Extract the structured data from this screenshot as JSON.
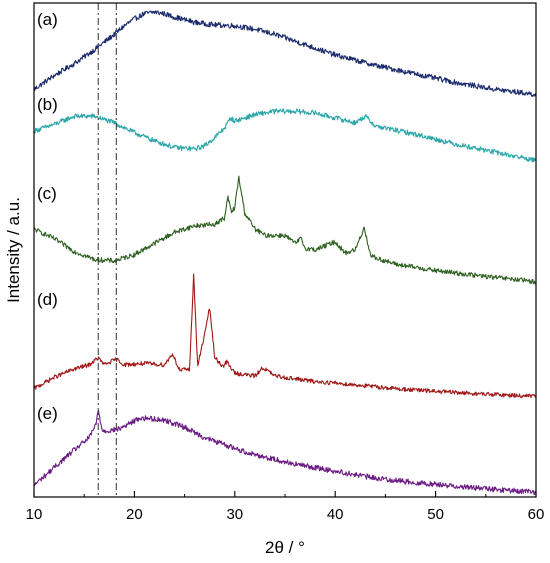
{
  "chart_data": {
    "type": "line",
    "title": "",
    "xlabel": "2θ / °",
    "ylabel": "Intensity / a.u.",
    "xlim": [
      10,
      60
    ],
    "xticks": [
      10,
      20,
      30,
      40,
      50,
      60
    ],
    "yticks_shown": false,
    "grid": false,
    "legend": "none",
    "stacked_offset": true,
    "reference_lines_x": [
      16.4,
      18.2
    ],
    "series": [
      {
        "name": "(a)",
        "color": "#1a2a6c",
        "x": [
          10,
          12,
          14,
          16,
          18,
          19,
          20,
          21,
          22,
          23,
          24,
          26,
          28,
          30,
          32,
          34,
          36,
          38,
          40,
          44,
          48,
          52,
          56,
          60
        ],
        "y": [
          0.1,
          0.26,
          0.4,
          0.56,
          0.74,
          0.84,
          0.92,
          0.98,
          1.0,
          0.98,
          0.94,
          0.88,
          0.85,
          0.84,
          0.8,
          0.74,
          0.66,
          0.58,
          0.5,
          0.38,
          0.28,
          0.18,
          0.1,
          0.04
        ]
      },
      {
        "name": "(b)",
        "color": "#2ba6a8",
        "x": [
          10,
          12,
          14,
          16,
          18,
          20,
          22,
          24,
          26,
          27,
          28,
          29,
          29.6,
          30,
          31,
          32,
          34,
          36,
          38,
          40,
          42,
          43,
          44,
          48,
          52,
          56,
          60
        ],
        "y": [
          0.5,
          0.58,
          0.68,
          0.68,
          0.6,
          0.48,
          0.38,
          0.3,
          0.28,
          0.32,
          0.42,
          0.54,
          0.66,
          0.62,
          0.66,
          0.7,
          0.74,
          0.74,
          0.72,
          0.66,
          0.6,
          0.68,
          0.56,
          0.46,
          0.34,
          0.24,
          0.14
        ]
      },
      {
        "name": "(c)",
        "color": "#2e6020",
        "x": [
          10,
          12,
          14,
          16,
          18,
          20,
          22,
          24,
          26,
          28,
          29,
          29.3,
          29.7,
          30,
          30.4,
          31,
          32,
          33,
          35,
          36,
          36.6,
          37,
          38,
          40,
          41,
          42,
          42.9,
          43.5,
          44,
          46,
          48,
          50,
          54,
          57,
          60
        ],
        "y": [
          0.7,
          0.58,
          0.42,
          0.32,
          0.3,
          0.38,
          0.52,
          0.66,
          0.74,
          0.76,
          0.84,
          1.1,
          0.9,
          0.98,
          1.34,
          0.9,
          0.7,
          0.62,
          0.62,
          0.52,
          0.58,
          0.46,
          0.44,
          0.54,
          0.4,
          0.44,
          0.72,
          0.38,
          0.34,
          0.26,
          0.22,
          0.18,
          0.12,
          0.08,
          0.04
        ]
      },
      {
        "name": "(d)",
        "color": "#a01818",
        "x": [
          10,
          12,
          14,
          15.5,
          16.4,
          17,
          18.2,
          19,
          21,
          23,
          23.8,
          24.5,
          25.5,
          25.9,
          26.3,
          27,
          27.5,
          28,
          28.8,
          29.2,
          30,
          32,
          32.8,
          34,
          36,
          38,
          40,
          43,
          46,
          50,
          55,
          60
        ],
        "y": [
          0.12,
          0.28,
          0.4,
          0.46,
          0.56,
          0.46,
          0.54,
          0.46,
          0.48,
          0.46,
          0.62,
          0.38,
          0.4,
          1.75,
          0.44,
          0.9,
          1.28,
          0.56,
          0.44,
          0.5,
          0.34,
          0.3,
          0.42,
          0.3,
          0.26,
          0.22,
          0.2,
          0.16,
          0.12,
          0.08,
          0.04,
          0.01
        ]
      },
      {
        "name": "(e)",
        "color": "#6a1a82",
        "x": [
          10,
          12,
          14,
          15.5,
          16.2,
          16.4,
          16.8,
          17.5,
          18.5,
          19.5,
          20.5,
          21.5,
          23,
          25,
          27,
          29,
          31,
          33,
          36,
          40,
          44,
          48,
          52,
          56,
          60
        ],
        "y": [
          0.1,
          0.3,
          0.5,
          0.64,
          0.8,
          0.96,
          0.72,
          0.72,
          0.74,
          0.8,
          0.86,
          0.86,
          0.84,
          0.76,
          0.64,
          0.56,
          0.48,
          0.42,
          0.34,
          0.26,
          0.18,
          0.13,
          0.09,
          0.05,
          0.02
        ]
      }
    ]
  }
}
